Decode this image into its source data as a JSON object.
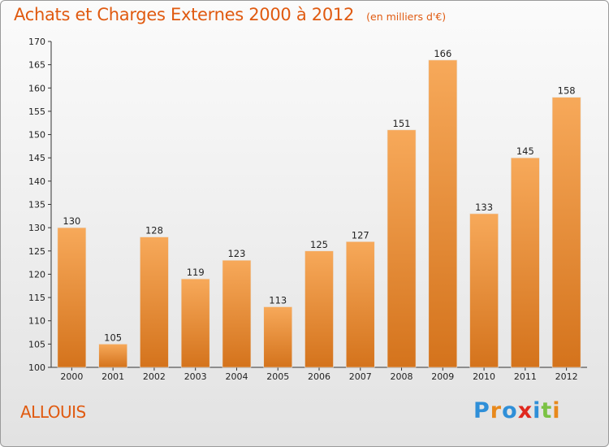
{
  "header": {
    "title": "Achats et Charges Externes 2000 à 2012",
    "unit": "(en milliers d'€)"
  },
  "footer": {
    "commune": "ALLOUIS",
    "logo_text": "Proxiti"
  },
  "colors": {
    "title": "#e05a10",
    "bar_top": "#f7a95a",
    "bar_bottom": "#d4731c",
    "logo_letters": [
      "#2f8fd8",
      "#e8891c",
      "#2f8fd8",
      "#e0281e",
      "#2f8fd8",
      "#7bc244",
      "#e8891c"
    ]
  },
  "chart_data": {
    "type": "bar",
    "title": "Achats et Charges Externes 2000 à 2012",
    "subtitle": "(en milliers d'€)",
    "categories": [
      "2000",
      "2001",
      "2002",
      "2003",
      "2004",
      "2005",
      "2006",
      "2007",
      "2008",
      "2009",
      "2010",
      "2011",
      "2012"
    ],
    "values": [
      130,
      105,
      128,
      119,
      123,
      113,
      125,
      127,
      151,
      166,
      133,
      145,
      158
    ],
    "ylim": [
      100,
      170
    ],
    "yticks": [
      100,
      105,
      110,
      115,
      120,
      125,
      130,
      135,
      140,
      145,
      150,
      155,
      160,
      165,
      170
    ],
    "grid": false,
    "data_labels": true
  }
}
